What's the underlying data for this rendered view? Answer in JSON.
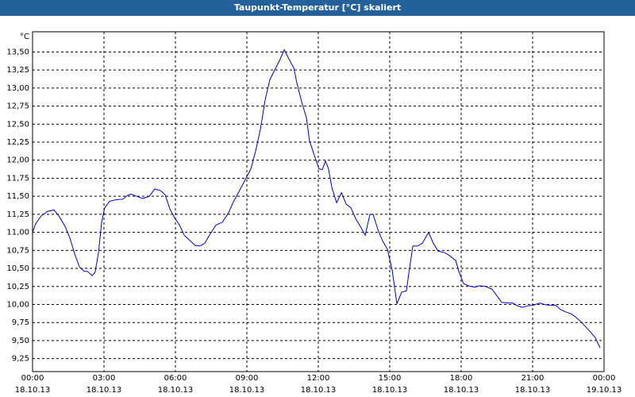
{
  "chart_data": {
    "type": "line",
    "title": "Taupunkt-Temperatur [°C] skaliert",
    "y_unit": "°C",
    "color": "#0000c8",
    "grid": true,
    "x": [
      0,
      0.13,
      0.37,
      0.63,
      0.9,
      1.1,
      1.37,
      1.57,
      1.77,
      1.97,
      2.17,
      2.3,
      2.5,
      2.63,
      2.77,
      2.9,
      3.03,
      3.23,
      3.47,
      3.8,
      3.97,
      4.13,
      4.37,
      4.63,
      4.9,
      5.13,
      5.37,
      5.57,
      5.77,
      5.97,
      6.17,
      6.37,
      6.63,
      6.83,
      7.03,
      7.23,
      7.43,
      7.7,
      7.97,
      8.23,
      8.43,
      8.63,
      8.9,
      9.17,
      9.37,
      9.57,
      9.77,
      9.97,
      10.17,
      10.37,
      10.57,
      10.77,
      10.97,
      11.1,
      11.3,
      11.5,
      11.63,
      11.83,
      12.03,
      12.17,
      12.3,
      12.43,
      12.57,
      12.77,
      12.97,
      13.17,
      13.37,
      13.57,
      13.77,
      13.97,
      14.17,
      14.3,
      14.5,
      14.7,
      14.9,
      15.1,
      15.3,
      15.5,
      15.7,
      15.83,
      15.97,
      16.17,
      16.37,
      16.63,
      16.83,
      17.03,
      17.3,
      17.5,
      17.77,
      17.9,
      18.1,
      18.3,
      18.57,
      18.77,
      19.03,
      19.3,
      19.5,
      19.7,
      19.97,
      20.17,
      20.37,
      20.57,
      20.77,
      21.03,
      21.3,
      21.5,
      21.7,
      21.97,
      22.17,
      22.37,
      22.63,
      22.83,
      23.03,
      23.23,
      23.43,
      23.63,
      23.83
    ],
    "values": [
      11.0,
      11.12,
      11.23,
      11.29,
      11.31,
      11.23,
      11.08,
      10.92,
      10.7,
      10.52,
      10.46,
      10.46,
      10.4,
      10.45,
      10.72,
      11.14,
      11.34,
      11.43,
      11.45,
      11.46,
      11.51,
      11.53,
      11.5,
      11.47,
      11.5,
      11.6,
      11.58,
      11.52,
      11.32,
      11.2,
      11.1,
      10.96,
      10.88,
      10.82,
      10.81,
      10.85,
      10.96,
      11.1,
      11.14,
      11.27,
      11.42,
      11.54,
      11.71,
      11.88,
      12.13,
      12.43,
      12.84,
      13.12,
      13.25,
      13.38,
      13.53,
      13.4,
      13.28,
      13.07,
      12.81,
      12.59,
      12.27,
      12.07,
      11.88,
      11.87,
      11.99,
      11.88,
      11.62,
      11.41,
      11.55,
      11.39,
      11.34,
      11.19,
      11.08,
      10.96,
      11.25,
      11.25,
      11.04,
      10.88,
      10.77,
      10.48,
      10.01,
      10.17,
      10.19,
      10.5,
      10.81,
      10.81,
      10.85,
      11.0,
      10.85,
      10.74,
      10.72,
      10.68,
      10.61,
      10.46,
      10.29,
      10.26,
      10.24,
      10.26,
      10.25,
      10.21,
      10.12,
      10.03,
      10.02,
      10.02,
      9.98,
      9.96,
      9.98,
      9.99,
      10.02,
      10.0,
      9.99,
      9.99,
      9.93,
      9.9,
      9.87,
      9.82,
      9.76,
      9.69,
      9.62,
      9.54,
      9.4
    ],
    "xlim": [
      0,
      24
    ],
    "ylim": [
      9.07,
      13.78
    ],
    "xticks": [
      {
        "value": 0,
        "label": "00:00",
        "date": "18.10.13"
      },
      {
        "value": 3,
        "label": "03:00",
        "date": "18.10.13"
      },
      {
        "value": 6,
        "label": "06:00",
        "date": "18.10.13"
      },
      {
        "value": 9,
        "label": "09:00",
        "date": "18.10.13"
      },
      {
        "value": 12,
        "label": "12:00",
        "date": "18.10.13"
      },
      {
        "value": 15,
        "label": "15:00",
        "date": "18.10.13"
      },
      {
        "value": 18,
        "label": "18:00",
        "date": "18.10.13"
      },
      {
        "value": 21,
        "label": "21:00",
        "date": "18.10.13"
      },
      {
        "value": 24,
        "label": "00:00",
        "date": "19.10.13"
      }
    ],
    "yticks": [
      {
        "value": 9.25,
        "label": "9,25"
      },
      {
        "value": 9.5,
        "label": "9,50"
      },
      {
        "value": 9.75,
        "label": "9,75"
      },
      {
        "value": 10,
        "label": "10,00"
      },
      {
        "value": 10.25,
        "label": "10,25"
      },
      {
        "value": 10.5,
        "label": "10,50"
      },
      {
        "value": 10.75,
        "label": "10,75"
      },
      {
        "value": 11,
        "label": "11,00"
      },
      {
        "value": 11.25,
        "label": "11,25"
      },
      {
        "value": 11.5,
        "label": "11,50"
      },
      {
        "value": 11.75,
        "label": "11,75"
      },
      {
        "value": 12,
        "label": "12,00"
      },
      {
        "value": 12.25,
        "label": "12,25"
      },
      {
        "value": 12.5,
        "label": "12,50"
      },
      {
        "value": 12.75,
        "label": "12,75"
      },
      {
        "value": 13,
        "label": "13,00"
      },
      {
        "value": 13.25,
        "label": "13,25"
      },
      {
        "value": 13.5,
        "label": "13,50"
      }
    ]
  }
}
